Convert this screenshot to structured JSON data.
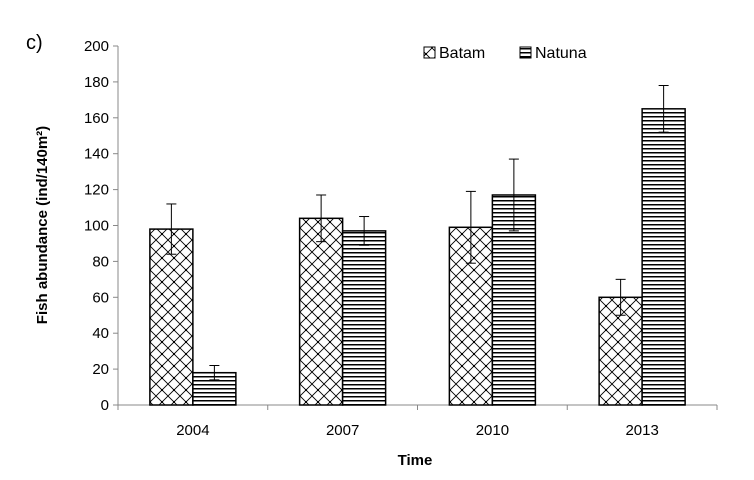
{
  "panel_label": "c)",
  "chart_data": {
    "type": "bar",
    "xlabel": "Time",
    "ylabel": "Fish abundance (ind/140m²)",
    "categories": [
      "2004",
      "2007",
      "2010",
      "2013"
    ],
    "ylim": [
      0,
      200
    ],
    "yticks": [
      0,
      20,
      40,
      60,
      80,
      100,
      120,
      140,
      160,
      180,
      200
    ],
    "grid": false,
    "legend_position": "top-right",
    "series": [
      {
        "name": "Batam",
        "pattern": "crosshatch",
        "values": [
          98,
          104,
          99,
          60
        ],
        "error": [
          14,
          13,
          20,
          10
        ]
      },
      {
        "name": "Natuna",
        "pattern": "horizontal-lines",
        "values": [
          18,
          97,
          117,
          165
        ],
        "error": [
          4,
          8,
          20,
          13
        ]
      }
    ]
  }
}
